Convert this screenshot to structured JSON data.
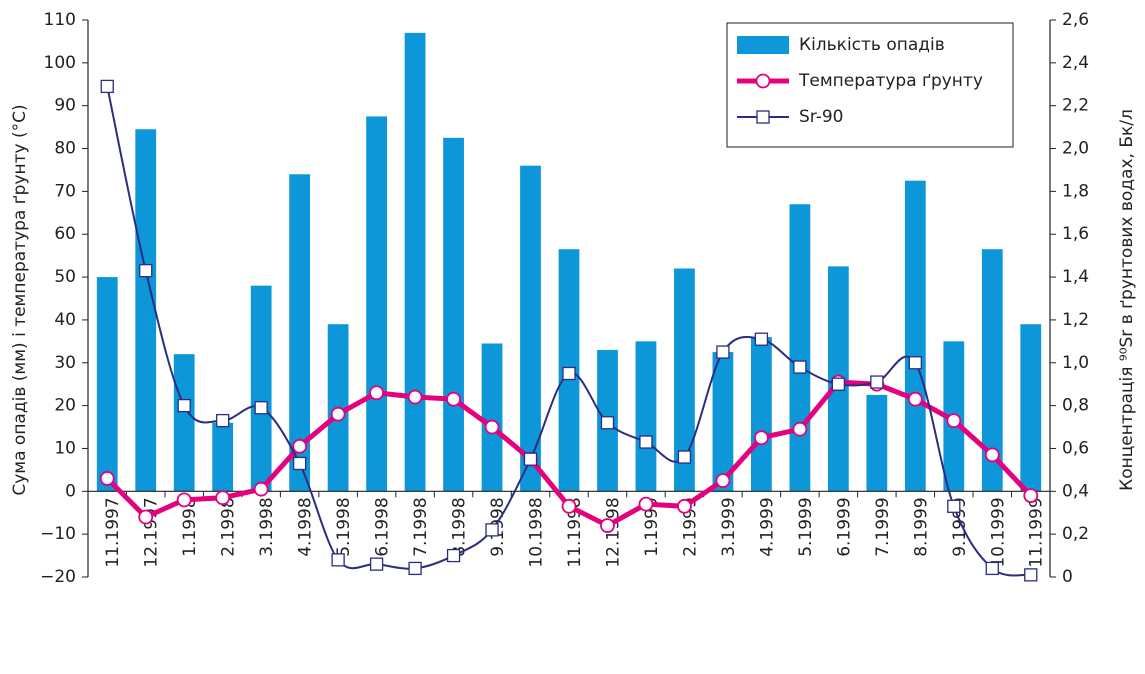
{
  "chart_data": {
    "type": "bar-line",
    "y_label": "Сума опадів (мм) і температура ґрунту (°C)",
    "y2_label": "Концентрація ⁹⁰Sr в ґрунтових водах, Бк/л",
    "categories": [
      "11.1997",
      "12.1997",
      "1.1998",
      "2.1998",
      "3.1998",
      "4.1998",
      "5.1998",
      "6.1998",
      "7.1998",
      "8.1998",
      "9.1998",
      "10.1998",
      "11.1998",
      "12.1998",
      "1.1999",
      "2.1999",
      "3.1999",
      "4.1999",
      "5.1999",
      "6.1999",
      "7.1999",
      "8.1999",
      "9.1999",
      "10.1999",
      "11.1999"
    ],
    "series": [
      {
        "name": "Кількість опадів",
        "kind": "bar",
        "color": "#0d96d8",
        "axis": "y",
        "values": [
          50,
          84.5,
          32,
          16,
          48,
          74,
          39,
          87.5,
          107,
          82.5,
          34.5,
          76,
          56.5,
          33,
          35,
          52,
          32.5,
          36,
          67,
          52.5,
          22.5,
          72.5,
          35,
          56.5,
          39
        ]
      },
      {
        "name": "Температура ґрунту",
        "kind": "line",
        "color": "#e5007e",
        "marker": "circle",
        "smooth": false,
        "axis": "y",
        "values": [
          3,
          -6,
          -2,
          -1.5,
          0.5,
          10.5,
          18,
          23,
          22,
          21.5,
          15,
          7.5,
          -3.5,
          -8,
          -3,
          -3.5,
          2.5,
          12.5,
          14.5,
          25.5,
          25,
          21.5,
          16.5,
          8.5,
          -1
        ]
      },
      {
        "name": "Sr-90",
        "kind": "line",
        "color": "#2b2d83",
        "marker": "square",
        "smooth": true,
        "axis": "y2",
        "values": [
          2.29,
          1.43,
          0.8,
          0.73,
          0.79,
          0.53,
          0.08,
          0.06,
          0.04,
          0.1,
          0.22,
          0.55,
          0.95,
          0.72,
          0.63,
          0.56,
          1.05,
          1.11,
          0.98,
          0.9,
          0.91,
          1.0,
          0.33,
          0.04,
          0.01
        ]
      }
    ],
    "ylim": [
      -20,
      110
    ],
    "yticks": [
      {
        "value": -20,
        "label": "−20"
      },
      {
        "value": -10,
        "label": "−10"
      },
      0,
      10,
      20,
      30,
      40,
      50,
      60,
      70,
      80,
      90,
      100,
      110
    ],
    "y2lim": [
      0,
      2.6
    ],
    "y2ticks": [
      0,
      {
        "value": 0.2,
        "label": "0,2"
      },
      {
        "value": 0.4,
        "label": "0,4"
      },
      {
        "value": 0.6,
        "label": "0,6"
      },
      {
        "value": 0.8,
        "label": "0,8"
      },
      {
        "value": 1.0,
        "label": "1,0"
      },
      {
        "value": 1.2,
        "label": "1,2"
      },
      {
        "value": 1.4,
        "label": "1,4"
      },
      {
        "value": 1.6,
        "label": "1,6"
      },
      {
        "value": 1.8,
        "label": "1,8"
      },
      {
        "value": 2.0,
        "label": "2,0"
      },
      {
        "value": 2.2,
        "label": "2,2"
      },
      {
        "value": 2.4,
        "label": "2,4"
      },
      {
        "value": 2.6,
        "label": "2,6"
      }
    ],
    "legend": "upper right"
  }
}
